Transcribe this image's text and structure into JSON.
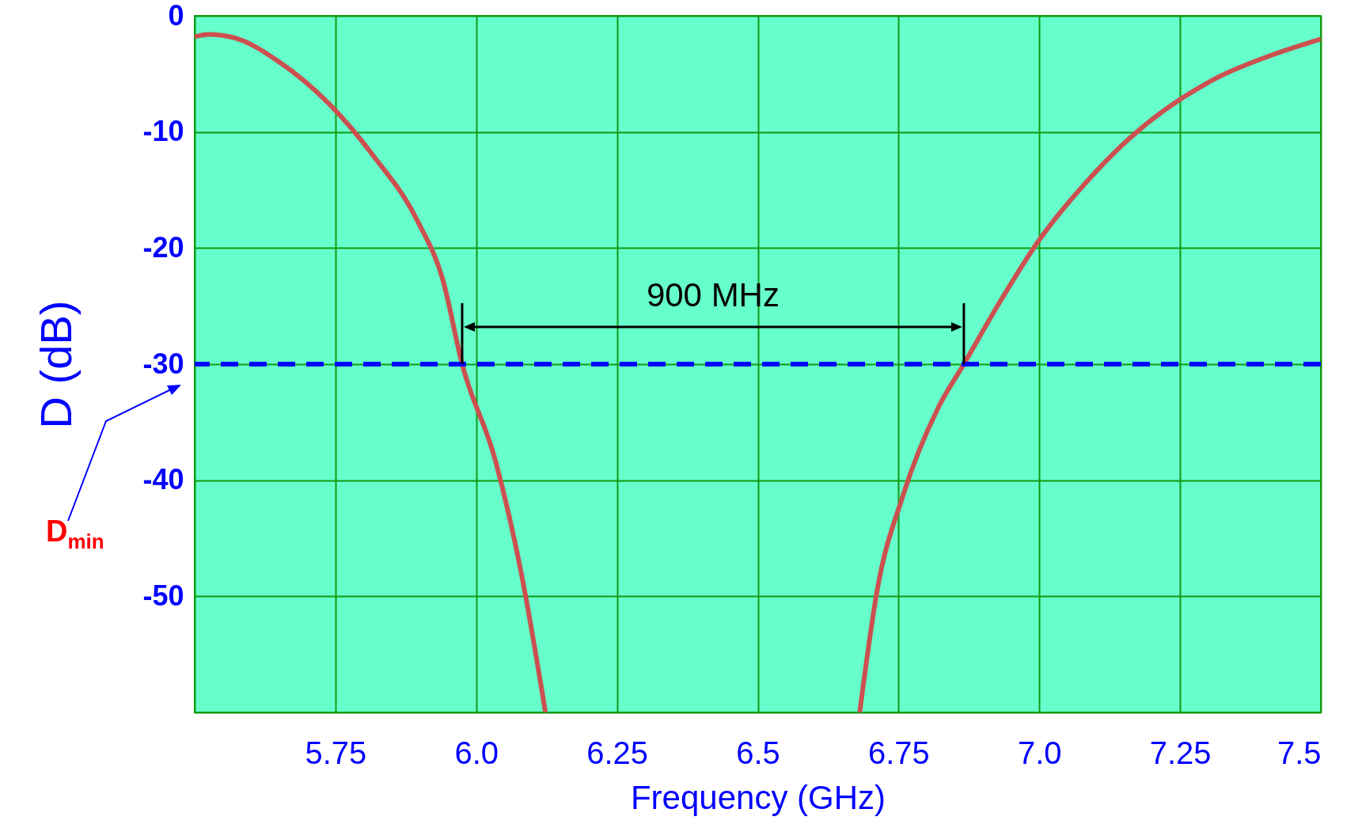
{
  "chart_data": {
    "type": "line",
    "xlabel": "Frequency (GHz)",
    "ylabel": "D (dB)",
    "x": [
      5.5,
      5.525,
      5.571,
      5.648,
      5.739,
      5.818,
      5.895,
      5.941,
      5.975,
      6.034,
      6.08,
      6.123,
      null,
      6.681,
      6.712,
      6.758,
      6.82,
      6.866,
      6.928,
      7.0,
      7.082,
      7.159,
      7.313,
      7.406,
      7.5
    ],
    "series": [
      {
        "color": "#cc5050",
        "values": [
          -1.8,
          -1.6,
          -1.9,
          -3.9,
          -7.6,
          -12.1,
          -17.6,
          -22.8,
          -30,
          -38.3,
          -48,
          -60,
          null,
          -60,
          -49.5,
          -41.3,
          -33.8,
          -30,
          -24.8,
          -19.3,
          -14.4,
          -10.6,
          -5.4,
          -3.5,
          -2.0
        ]
      }
    ],
    "xlim": [
      5.5,
      7.5
    ],
    "ylim": [
      -60,
      0
    ],
    "xticks": [
      {
        "value": 5.5,
        "label": null
      },
      5.75,
      {
        "value": 6,
        "label": "6.0"
      },
      6.25,
      6.5,
      6.75,
      {
        "value": 7,
        "label": "7.0"
      },
      7.25,
      7.5
    ],
    "yticks": [
      0,
      -10,
      -20,
      -30,
      -40,
      -50,
      {
        "value": -60,
        "label": null
      }
    ],
    "grid": true,
    "marker": "none",
    "line_style": "solid",
    "ref_lines": [
      {
        "axis": "y",
        "value": -30,
        "color": "#0000ff",
        "line_style": "dashed"
      }
    ],
    "annotations": [
      "900 MHz",
      "D$_{min}$"
    ]
  }
}
